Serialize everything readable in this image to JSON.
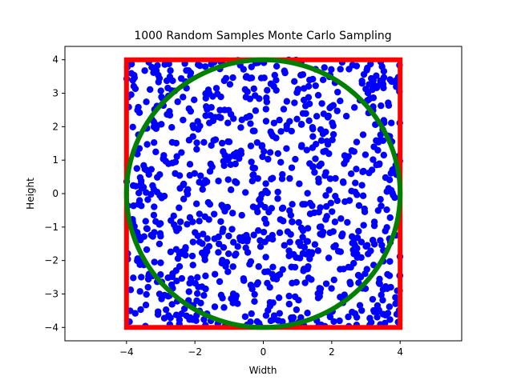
{
  "chart_data": {
    "type": "scatter",
    "title": "1000 Random Samples Monte Carlo Sampling",
    "xlabel": "Width",
    "ylabel": "Height",
    "xlim": [
      -5.8,
      5.8
    ],
    "ylim": [
      -4.4,
      4.4
    ],
    "xticks": [
      -4,
      -2,
      0,
      2,
      4
    ],
    "yticks": [
      -4,
      -3,
      -2,
      -1,
      0,
      1,
      2,
      3,
      4
    ],
    "grid": false,
    "sample_count": 1000,
    "sample_range": [
      -4,
      4
    ],
    "colors": {
      "points": "#0000ff",
      "square": "#ff0000",
      "circle": "#008000"
    },
    "square": {
      "x_range": [
        -4,
        4
      ],
      "y_range": [
        -4,
        4
      ]
    },
    "circle": {
      "center": [
        0,
        0
      ],
      "radius": 4
    }
  }
}
